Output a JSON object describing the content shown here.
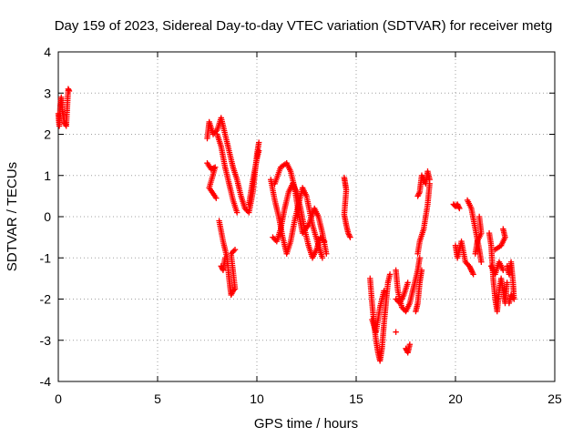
{
  "chart_data": {
    "type": "scatter",
    "title": "Day 159 of 2023, Sidereal Day-to-day VTEC variation (SDTVAR) for receiver metg",
    "xlabel": "GPS time / hours",
    "ylabel": "SDTVAR / TECUs",
    "xlim": [
      0,
      25
    ],
    "ylim": [
      -4,
      4
    ],
    "x_ticks": [
      0,
      5,
      10,
      15,
      20,
      25
    ],
    "y_ticks": [
      -4,
      -3,
      -2,
      -1,
      0,
      1,
      2,
      3,
      4
    ],
    "x_tick_labels": [
      "0",
      "5",
      "10",
      "15",
      "20",
      "25"
    ],
    "y_tick_labels": [
      "-4",
      "-3",
      "-2",
      "-1",
      "0",
      "1",
      "2",
      "3",
      "4"
    ],
    "grid": true,
    "marker": "plus",
    "color": "#ff0000",
    "segments": [
      {
        "points": [
          [
            0.0,
            2.5
          ],
          [
            0.05,
            2.2
          ],
          [
            0.1,
            2.7
          ],
          [
            0.15,
            2.9
          ],
          [
            0.2,
            2.6
          ],
          [
            0.3,
            2.3
          ],
          [
            0.4,
            2.2
          ],
          [
            0.5,
            3.1
          ],
          [
            0.55,
            3.05
          ]
        ]
      },
      {
        "points": [
          [
            7.5,
            1.9
          ],
          [
            7.6,
            2.3
          ],
          [
            7.8,
            2.0
          ],
          [
            8.0,
            2.1
          ],
          [
            8.2,
            2.4
          ],
          [
            8.4,
            2.0
          ],
          [
            8.6,
            1.6
          ],
          [
            8.8,
            1.2
          ],
          [
            9.0,
            0.9
          ],
          [
            9.2,
            0.5
          ],
          [
            9.4,
            0.2
          ],
          [
            9.6,
            0.1
          ],
          [
            9.8,
            0.6
          ],
          [
            10.0,
            1.5
          ],
          [
            10.1,
            1.8
          ]
        ]
      },
      {
        "points": [
          [
            7.5,
            1.3
          ],
          [
            7.7,
            1.15
          ],
          [
            7.9,
            1.2
          ],
          [
            7.6,
            0.7
          ],
          [
            7.95,
            0.45
          ]
        ]
      },
      {
        "points": [
          [
            8.0,
            2.0
          ],
          [
            8.2,
            1.7
          ],
          [
            8.4,
            1.2
          ],
          [
            8.6,
            0.8
          ],
          [
            8.8,
            0.4
          ],
          [
            9.0,
            0.1
          ]
        ]
      },
      {
        "points": [
          [
            8.1,
            -0.1
          ],
          [
            8.3,
            -0.6
          ],
          [
            8.5,
            -1.0
          ],
          [
            8.6,
            -1.5
          ],
          [
            8.7,
            -1.9
          ],
          [
            8.8,
            -1.8
          ],
          [
            8.9,
            -1.75
          ],
          [
            8.7,
            -0.9
          ],
          [
            8.9,
            -0.8
          ]
        ]
      },
      {
        "points": [
          [
            8.2,
            -1.2
          ],
          [
            8.3,
            -1.3
          ],
          [
            8.4,
            -1.0
          ]
        ]
      },
      {
        "points": [
          [
            9.6,
            0.3
          ],
          [
            9.8,
            0.9
          ],
          [
            10.0,
            1.4
          ],
          [
            10.1,
            1.6
          ]
        ]
      },
      {
        "points": [
          [
            10.7,
            0.9
          ],
          [
            10.9,
            0.4
          ],
          [
            11.1,
            0.0
          ],
          [
            11.3,
            -0.5
          ],
          [
            11.5,
            -0.9
          ],
          [
            11.7,
            -0.6
          ],
          [
            11.9,
            -0.1
          ],
          [
            12.1,
            0.3
          ],
          [
            12.3,
            0.7
          ],
          [
            12.5,
            0.5
          ],
          [
            12.8,
            -0.2
          ],
          [
            13.1,
            -0.7
          ],
          [
            13.3,
            -1.0
          ]
        ]
      },
      {
        "points": [
          [
            10.8,
            -0.5
          ],
          [
            11.0,
            -0.6
          ],
          [
            11.2,
            -0.3
          ],
          [
            11.4,
            0.2
          ],
          [
            11.6,
            0.6
          ],
          [
            11.8,
            0.8
          ],
          [
            12.0,
            0.6
          ],
          [
            12.2,
            0.2
          ],
          [
            12.4,
            -0.3
          ],
          [
            12.6,
            -0.7
          ],
          [
            12.8,
            -1.0
          ],
          [
            13.0,
            -0.8
          ],
          [
            13.2,
            -0.5
          ],
          [
            13.4,
            -0.6
          ]
        ]
      },
      {
        "points": [
          [
            10.9,
            0.8
          ],
          [
            11.2,
            1.2
          ],
          [
            11.5,
            1.3
          ],
          [
            11.7,
            1.1
          ],
          [
            11.9,
            0.7
          ],
          [
            12.1,
            0.1
          ],
          [
            12.3,
            -0.4
          ],
          [
            12.6,
            -0.2
          ],
          [
            12.9,
            0.2
          ],
          [
            13.1,
            0.0
          ],
          [
            13.3,
            -0.4
          ],
          [
            13.5,
            -0.9
          ]
        ]
      },
      {
        "points": [
          [
            14.4,
            0.95
          ],
          [
            14.45,
            0.8
          ],
          [
            14.5,
            0.65
          ],
          [
            14.4,
            0.05
          ],
          [
            14.5,
            -0.2
          ],
          [
            14.6,
            -0.4
          ],
          [
            14.7,
            -0.5
          ]
        ]
      },
      {
        "points": [
          [
            15.7,
            -1.5
          ],
          [
            15.8,
            -2.1
          ],
          [
            15.9,
            -2.6
          ],
          [
            16.0,
            -3.0
          ],
          [
            16.1,
            -3.3
          ],
          [
            16.2,
            -3.5
          ],
          [
            16.3,
            -3.2
          ],
          [
            16.4,
            -2.6
          ],
          [
            16.5,
            -2.1
          ],
          [
            16.6,
            -1.6
          ],
          [
            16.7,
            -1.4
          ]
        ]
      },
      {
        "points": [
          [
            15.8,
            -2.5
          ],
          [
            16.0,
            -2.8
          ],
          [
            16.2,
            -2.2
          ],
          [
            16.4,
            -1.8
          ]
        ]
      },
      {
        "points": [
          [
            17.0,
            -1.3
          ],
          [
            17.1,
            -1.8
          ],
          [
            17.3,
            -2.2
          ],
          [
            17.5,
            -2.3
          ],
          [
            17.7,
            -2.1
          ],
          [
            17.9,
            -1.7
          ],
          [
            18.1,
            -1.3
          ],
          [
            18.2,
            -1.0
          ]
        ]
      },
      {
        "points": [
          [
            17.0,
            -2.0
          ],
          [
            17.2,
            -2.1
          ],
          [
            17.4,
            -1.9
          ],
          [
            17.6,
            -1.6
          ]
        ]
      },
      {
        "points": [
          [
            17.5,
            -3.2
          ],
          [
            17.6,
            -3.3
          ],
          [
            17.7,
            -3.1
          ]
        ]
      },
      {
        "points": [
          [
            17.0,
            -2.8
          ]
        ]
      },
      {
        "points": [
          [
            18.0,
            -2.3
          ],
          [
            18.1,
            -2.1
          ],
          [
            18.2,
            -1.6
          ],
          [
            18.3,
            -1.3
          ]
        ]
      },
      {
        "points": [
          [
            18.1,
            0.5
          ],
          [
            18.2,
            0.6
          ],
          [
            18.3,
            1.0
          ],
          [
            18.5,
            0.8
          ],
          [
            18.6,
            1.1
          ],
          [
            18.7,
            0.9
          ]
        ]
      },
      {
        "points": [
          [
            18.1,
            -0.9
          ],
          [
            18.2,
            -0.6
          ],
          [
            18.4,
            -0.3
          ],
          [
            18.6,
            0.3
          ],
          [
            18.7,
            0.8
          ]
        ]
      },
      {
        "points": [
          [
            19.9,
            0.3
          ],
          [
            20.0,
            0.25
          ],
          [
            20.1,
            0.3
          ],
          [
            20.2,
            0.2
          ]
        ]
      },
      {
        "points": [
          [
            20.0,
            -0.7
          ],
          [
            20.1,
            -1.0
          ],
          [
            20.3,
            -0.6
          ],
          [
            20.5,
            -1.1
          ],
          [
            20.7,
            -1.2
          ],
          [
            20.8,
            -1.3
          ],
          [
            20.9,
            -1.4
          ]
        ]
      },
      {
        "points": [
          [
            20.6,
            0.4
          ],
          [
            20.8,
            0.2
          ],
          [
            21.0,
            -0.3
          ],
          [
            21.2,
            -0.8
          ],
          [
            21.3,
            -1.1
          ]
        ]
      },
      {
        "points": [
          [
            21.2,
            0.0
          ],
          [
            21.3,
            -0.4
          ],
          [
            21.1,
            -0.6
          ],
          [
            21.0,
            -0.9
          ]
        ]
      },
      {
        "points": [
          [
            21.7,
            -0.4
          ],
          [
            21.8,
            -0.7
          ],
          [
            21.9,
            -1.5
          ],
          [
            22.0,
            -2.0
          ],
          [
            22.1,
            -2.3
          ],
          [
            22.2,
            -1.8
          ],
          [
            22.3,
            -1.5
          ],
          [
            22.4,
            -1.8
          ],
          [
            22.5,
            -2.1
          ],
          [
            22.6,
            -1.6
          ]
        ]
      },
      {
        "points": [
          [
            21.8,
            -1.2
          ],
          [
            22.0,
            -1.4
          ],
          [
            22.2,
            -1.1
          ],
          [
            22.4,
            -1.3
          ]
        ]
      },
      {
        "points": [
          [
            22.6,
            -1.2
          ],
          [
            22.7,
            -1.4
          ],
          [
            22.8,
            -1.1
          ],
          [
            22.9,
            -1.6
          ],
          [
            22.95,
            -2.0
          ],
          [
            22.8,
            -1.9
          ],
          [
            22.7,
            -2.1
          ]
        ]
      },
      {
        "points": [
          [
            22.4,
            -0.3
          ],
          [
            22.5,
            -0.5
          ],
          [
            22.3,
            -0.7
          ],
          [
            22.0,
            -0.8
          ]
        ]
      }
    ]
  }
}
